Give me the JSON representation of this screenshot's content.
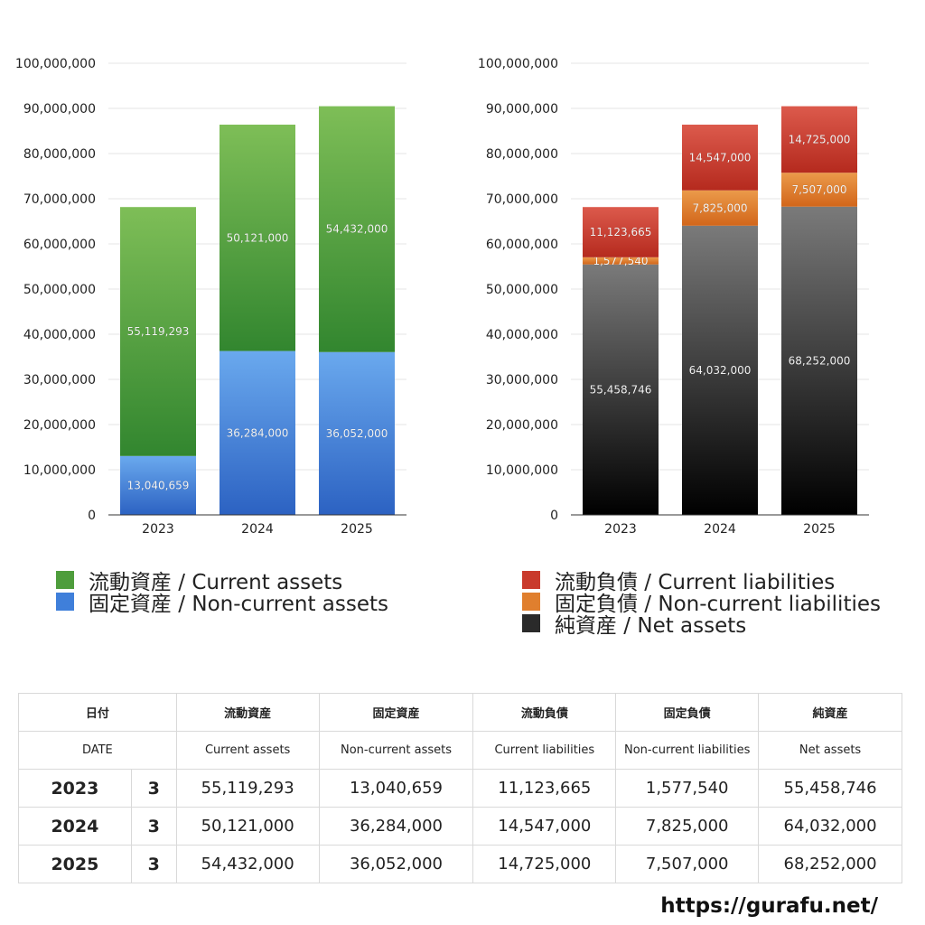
{
  "chart_data": [
    {
      "type": "bar",
      "stacked": true,
      "categories": [
        "2023",
        "2024",
        "2025"
      ],
      "ylim": [
        0,
        100000000
      ],
      "yticks": [
        0,
        10000000,
        20000000,
        30000000,
        40000000,
        50000000,
        60000000,
        70000000,
        80000000,
        90000000,
        100000000
      ],
      "ytick_labels": [
        "0",
        "10,000,000",
        "20,000,000",
        "30,000,000",
        "40,000,000",
        "50,000,000",
        "60,000,000",
        "70,000,000",
        "80,000,000",
        "90,000,000",
        "100,000,000"
      ],
      "grid": true,
      "legend_position": "bottom",
      "series": [
        {
          "name": "固定資産 / Non-current assets",
          "values": [
            13040659,
            36284000,
            36052000
          ],
          "labels": [
            "13,040,659",
            "36,284,000",
            "36,052,000"
          ],
          "color_top": "#6aa9ee",
          "color_bottom": "#2c62c2"
        },
        {
          "name": "流動資産 / Current assets",
          "values": [
            55119293,
            50121000,
            54432000
          ],
          "labels": [
            "55,119,293",
            "50,121,000",
            "54,432,000"
          ],
          "color_top": "#7ebe57",
          "color_bottom": "#32862f"
        }
      ]
    },
    {
      "type": "bar",
      "stacked": true,
      "categories": [
        "2023",
        "2024",
        "2025"
      ],
      "ylim": [
        0,
        100000000
      ],
      "yticks": [
        0,
        10000000,
        20000000,
        30000000,
        40000000,
        50000000,
        60000000,
        70000000,
        80000000,
        90000000,
        100000000
      ],
      "ytick_labels": [
        "0",
        "10,000,000",
        "20,000,000",
        "30,000,000",
        "40,000,000",
        "50,000,000",
        "60,000,000",
        "70,000,000",
        "80,000,000",
        "90,000,000",
        "100,000,000"
      ],
      "grid": true,
      "legend_position": "bottom",
      "series": [
        {
          "name": "純資産 / Net assets",
          "values": [
            55458746,
            64032000,
            68252000
          ],
          "labels": [
            "55,458,746",
            "64,032,000",
            "68,252,000"
          ],
          "color_top": "#7a7a7a",
          "color_bottom": "#000000"
        },
        {
          "name": "固定負債 / Non-current liabilities",
          "values": [
            1577540,
            7825000,
            7507000
          ],
          "labels": [
            "1,577,540",
            "7,825,000",
            "7,507,000"
          ],
          "color_top": "#eb9a4a",
          "color_bottom": "#d2661a"
        },
        {
          "name": "流動負債 / Current liabilities",
          "values": [
            11123665,
            14547000,
            14725000
          ],
          "labels": [
            "11,123,665",
            "14,547,000",
            "14,725,000"
          ],
          "color_top": "#dc5a4c",
          "color_bottom": "#b52a1e"
        }
      ]
    }
  ],
  "legend_left": [
    {
      "label": "流動資産 / Current assets",
      "color": "#4e9d3c"
    },
    {
      "label": "固定資産 / Non-current assets",
      "color": "#3f7fda"
    }
  ],
  "legend_right": [
    {
      "label": "流動負債 / Current liabilities",
      "color": "#c93a2c"
    },
    {
      "label": "固定負債 / Non-current liabilities",
      "color": "#e07f2e"
    },
    {
      "label": "純資産 / Net assets",
      "color": "#2a2a2a"
    }
  ],
  "table": {
    "header_jp": [
      "日付",
      "流動資産",
      "固定資産",
      "流動負債",
      "固定負債",
      "純資産"
    ],
    "header_en": [
      "DATE",
      "Current assets",
      "Non-current assets",
      "Current liabilities",
      "Non-current liabilities",
      "Net assets"
    ],
    "rows": [
      {
        "year": "2023",
        "month": "3",
        "cells": [
          "55,119,293",
          "13,040,659",
          "11,123,665",
          "1,577,540",
          "55,458,746"
        ]
      },
      {
        "year": "2024",
        "month": "3",
        "cells": [
          "50,121,000",
          "36,284,000",
          "14,547,000",
          "7,825,000",
          "64,032,000"
        ]
      },
      {
        "year": "2025",
        "month": "3",
        "cells": [
          "54,432,000",
          "36,052,000",
          "14,725,000",
          "7,507,000",
          "68,252,000"
        ]
      }
    ]
  },
  "footer": {
    "url": "https://gurafu.net/"
  }
}
